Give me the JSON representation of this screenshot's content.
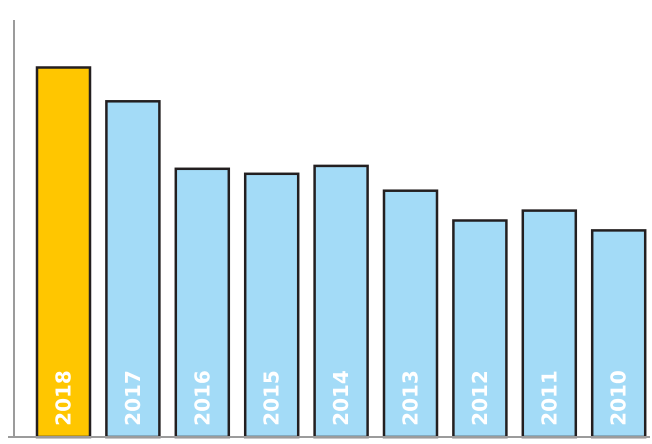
{
  "chart_data": {
    "type": "bar",
    "title": "",
    "xlabel": "",
    "ylabel": "",
    "categories": [
      "2018",
      "2017",
      "2016",
      "2015",
      "2014",
      "2013",
      "2012",
      "2011",
      "2010"
    ],
    "values": [
      372,
      338,
      270,
      265,
      273,
      248,
      218,
      228,
      208
    ],
    "ylim": [
      0,
      440
    ],
    "grid": false,
    "legend": "none",
    "highlight_index": 0,
    "colors": {
      "highlight": "#FFC600",
      "default": "#A3DBF7",
      "bar_border": "#231F20",
      "axis": "#9B9B9B",
      "label": "#FFFFFF"
    }
  }
}
